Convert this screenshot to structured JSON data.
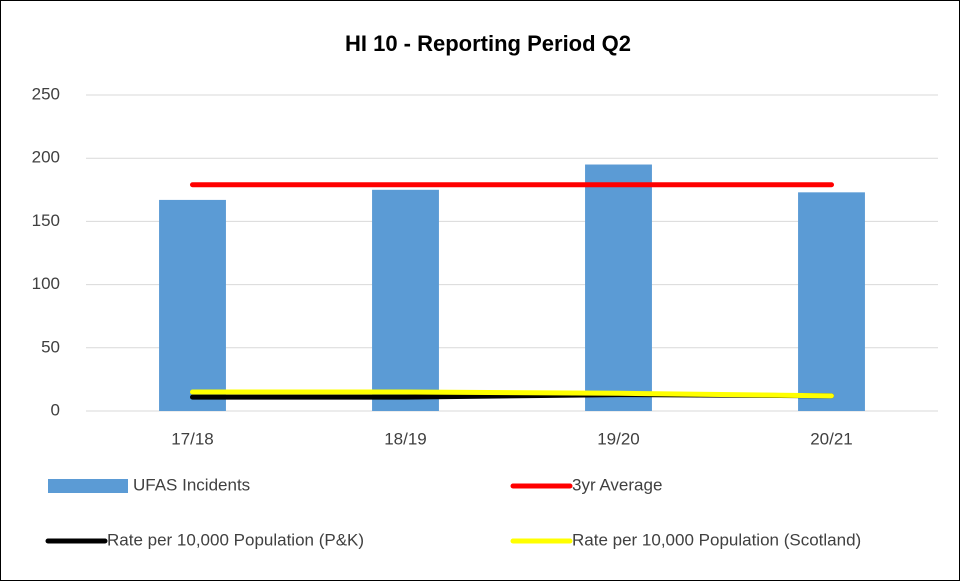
{
  "chart_data": {
    "type": "bar",
    "title": "HI 10 - Reporting Period Q2",
    "categories": [
      "17/18",
      "18/19",
      "19/20",
      "20/21"
    ],
    "series": [
      {
        "name": "UFAS Incidents",
        "type": "bar",
        "color": "#5b9bd5",
        "values": [
          167,
          175,
          195,
          173
        ]
      },
      {
        "name": "3yr Average",
        "type": "line",
        "color": "#ff0000",
        "values": [
          179,
          179,
          179,
          179
        ]
      },
      {
        "name": "Rate per 10,000 Population (P&K)",
        "type": "line",
        "color": "#000000",
        "values": [
          11,
          11,
          13,
          12
        ]
      },
      {
        "name": "Rate per 10,000 Population (Scotland)",
        "type": "line",
        "color": "#ffff00",
        "values": [
          15,
          15,
          14,
          12
        ]
      }
    ],
    "ylim": [
      0,
      250
    ],
    "yticks": [
      0,
      50,
      100,
      150,
      200,
      250
    ],
    "grid": true
  }
}
